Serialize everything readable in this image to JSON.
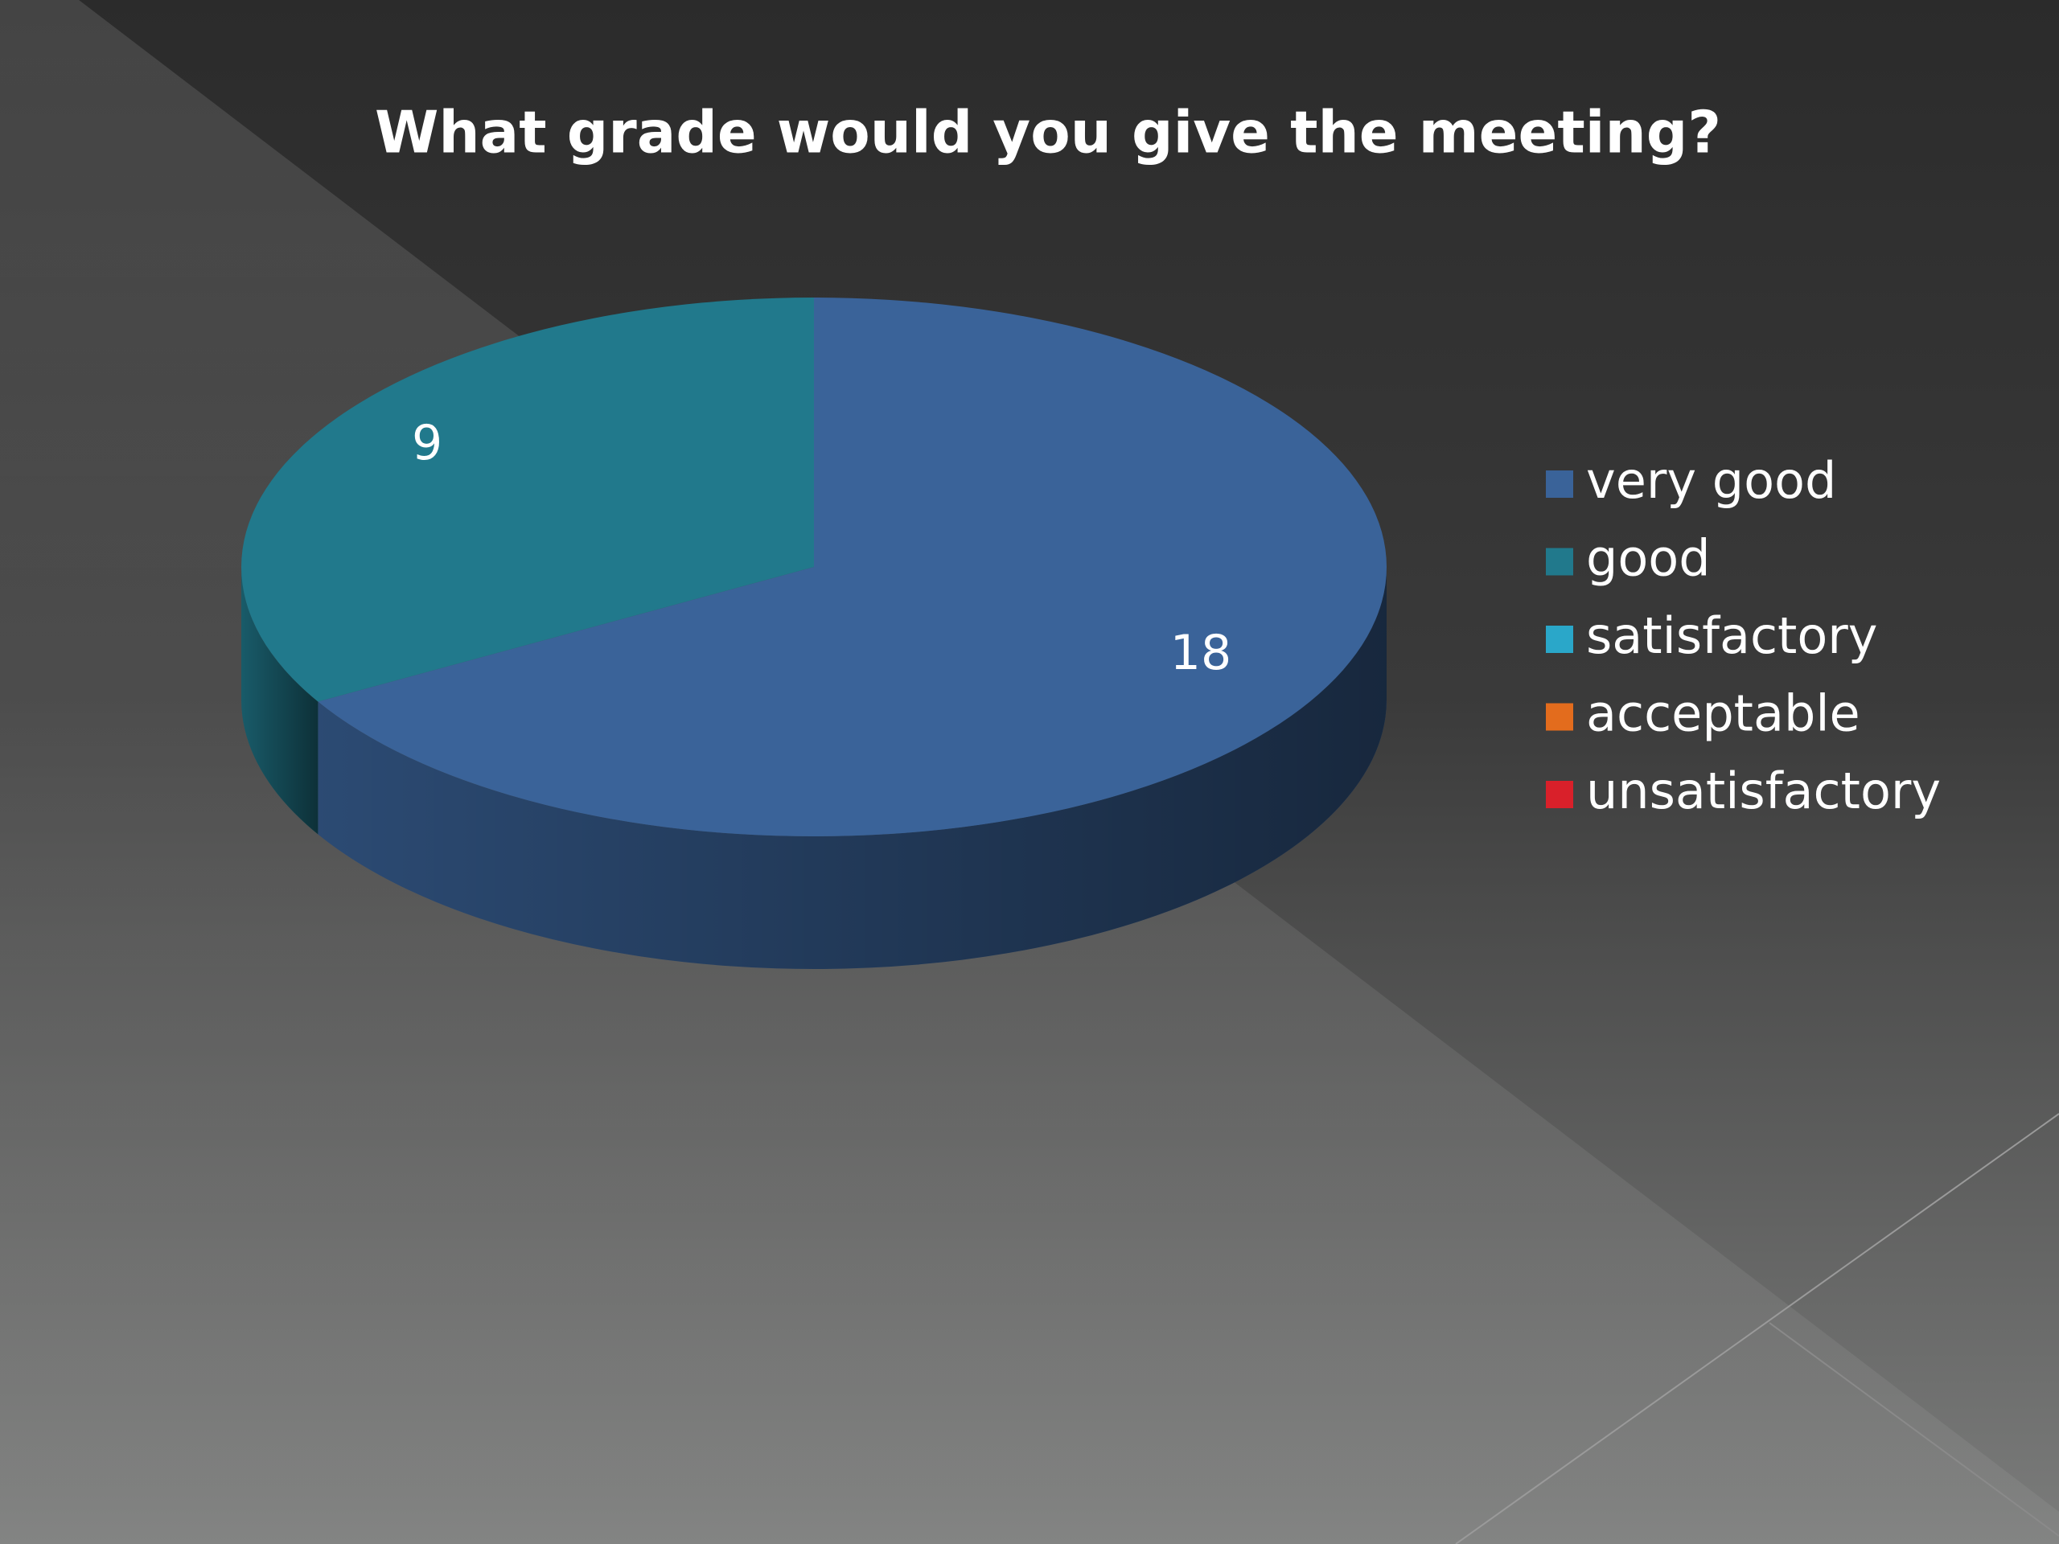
{
  "chart_data": {
    "type": "pie",
    "title": "What grade would you give the meeting?",
    "categories": [
      "very good",
      "good",
      "satisfactory",
      "acceptable",
      "unsatisfactory"
    ],
    "values": [
      18,
      9,
      0,
      0,
      0
    ],
    "colors": [
      "#3a6399",
      "#21798c",
      "#2aa7c9",
      "#e36c1d",
      "#d9202a"
    ],
    "legend": "right"
  }
}
